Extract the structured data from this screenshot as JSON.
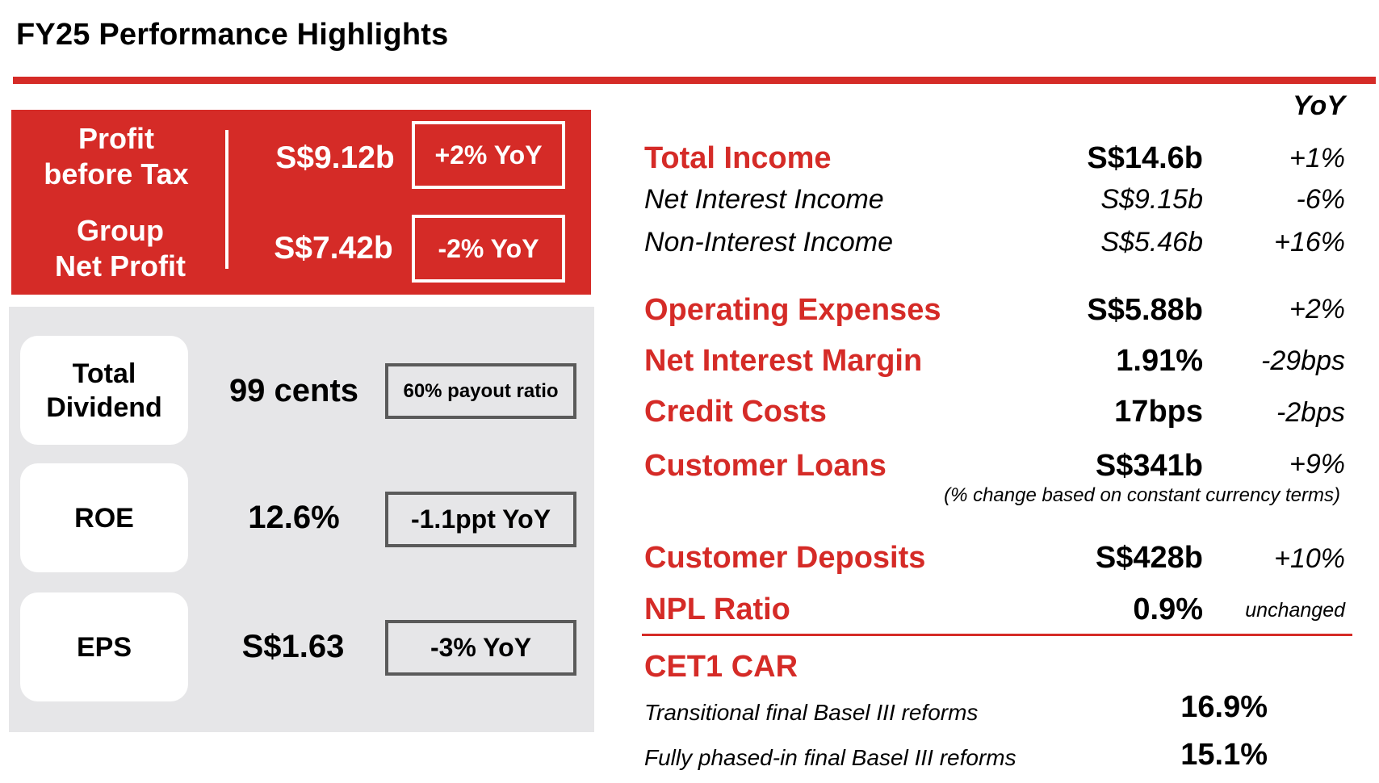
{
  "title": "FY25 Performance Highlights",
  "colors": {
    "accent": "#d52b27",
    "panel_grey": "#e6e6e8",
    "box_border": "#5a5a5a"
  },
  "red_panel": {
    "rows": [
      {
        "label_line1": "Profit",
        "label_line2": "before Tax",
        "value": "S$9.12b",
        "change": "+2% YoY"
      },
      {
        "label_line1": "Group",
        "label_line2": "Net Profit",
        "value": "S$7.42b",
        "change": "-2% YoY"
      }
    ]
  },
  "grey_panel": {
    "rows": [
      {
        "label_line1": "Total",
        "label_line2": "Dividend",
        "value": "99 cents",
        "note": "60% payout ratio"
      },
      {
        "label_line1": "ROE",
        "label_line2": "",
        "value": "12.6%",
        "note": "-1.1ppt YoY"
      },
      {
        "label_line1": "EPS",
        "label_line2": "",
        "value": "S$1.63",
        "note": "-3% YoY"
      }
    ]
  },
  "metrics": {
    "yoy_header": "YoY",
    "total_income": {
      "label": "Total Income",
      "value": "S$14.6b",
      "yoy": "+1%"
    },
    "net_interest_income": {
      "label": "Net Interest Income",
      "value": "S$9.15b",
      "yoy": "-6%"
    },
    "non_interest_income": {
      "label": "Non-Interest Income",
      "value": "S$5.46b",
      "yoy": "+16%"
    },
    "operating_expenses": {
      "label": "Operating Expenses",
      "value": "S$5.88b",
      "yoy": "+2%"
    },
    "net_interest_margin": {
      "label": "Net Interest Margin",
      "value": "1.91%",
      "yoy": "-29bps"
    },
    "credit_costs": {
      "label": "Credit Costs",
      "value": "17bps",
      "yoy": "-2bps"
    },
    "customer_loans": {
      "label": "Customer Loans",
      "value": "S$341b",
      "yoy": "+9%"
    },
    "loans_note": "(% change based on constant currency terms)",
    "customer_deposits": {
      "label": "Customer Deposits",
      "value": "S$428b",
      "yoy": "+10%"
    },
    "npl_ratio": {
      "label": "NPL Ratio",
      "value": "0.9%",
      "yoy": "unchanged"
    },
    "cet1": {
      "label": "CET1 CAR",
      "transitional_label": "Transitional final Basel III reforms",
      "transitional_value": "16.9%",
      "phased_label": "Fully phased-in final Basel III reforms",
      "phased_value": "15.1%"
    }
  }
}
